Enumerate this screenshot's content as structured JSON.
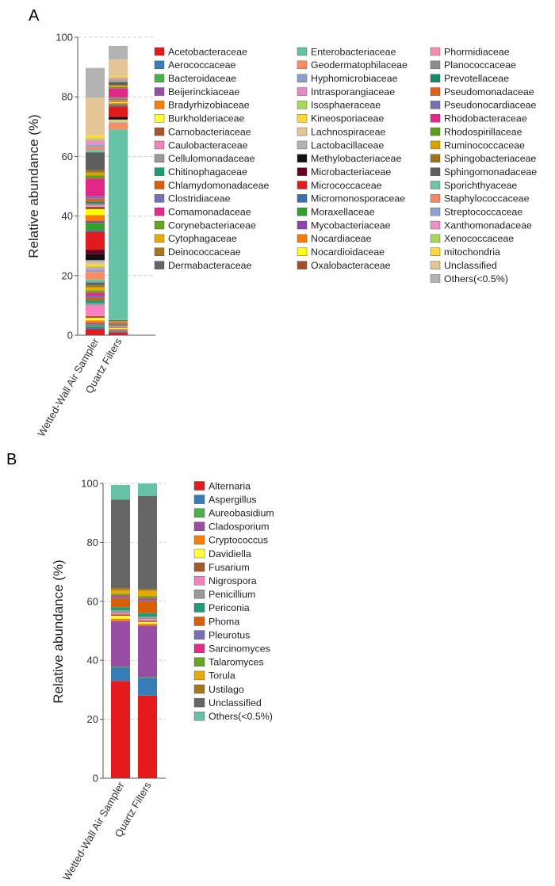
{
  "panels": [
    {
      "label": "A",
      "chart_data": {
        "type": "bar",
        "stacked": true,
        "ylabel": "Relative abundance (%)",
        "ylim": [
          0,
          100
        ],
        "yticks": [
          0,
          20,
          40,
          60,
          80,
          100
        ],
        "categories": [
          "Wetted-Wall Air Sampler",
          "Quartz Filters"
        ],
        "legend_placement": "right",
        "series": [
          {
            "name": "Acetobacteraceae",
            "color": "#e41a1c",
            "values": [
              2.0,
              1.0
            ]
          },
          {
            "name": "Aerococcaceae",
            "color": "#377eb8",
            "values": [
              0.8,
              0.3
            ]
          },
          {
            "name": "Bacteroidaceae",
            "color": "#4daf4a",
            "values": [
              0.7,
              0.2
            ]
          },
          {
            "name": "Beijerinckiaceae",
            "color": "#984ea3",
            "values": [
              0.7,
              0.3
            ]
          },
          {
            "name": "Bradyrhizobiaceae",
            "color": "#ff7f00",
            "values": [
              0.8,
              0.3
            ]
          },
          {
            "name": "Burkholderiaceae",
            "color": "#ffff33",
            "values": [
              0.8,
              0.3
            ]
          },
          {
            "name": "Carnobacteriaceae",
            "color": "#a65628",
            "values": [
              0.6,
              0.2
            ]
          },
          {
            "name": "Caulobacteraceae",
            "color": "#f781bf",
            "values": [
              3.5,
              0.3
            ]
          },
          {
            "name": "Cellulomonadaceae",
            "color": "#999999",
            "values": [
              0.8,
              0.2
            ]
          },
          {
            "name": "Chitinophagaceae",
            "color": "#1b9e77",
            "values": [
              1.0,
              0.3
            ]
          },
          {
            "name": "Chlamydomonadaceae",
            "color": "#d95f02",
            "values": [
              0.8,
              0.4
            ]
          },
          {
            "name": "Clostridiaceae",
            "color": "#7570b3",
            "values": [
              0.8,
              0.2
            ]
          },
          {
            "name": "Comamonadaceae",
            "color": "#e7298a",
            "values": [
              1.0,
              0.2
            ]
          },
          {
            "name": "Corynebacteriaceae",
            "color": "#66a61e",
            "values": [
              0.8,
              0.2
            ]
          },
          {
            "name": "Cytophagaceae",
            "color": "#e6ab02",
            "values": [
              1.0,
              0.2
            ]
          },
          {
            "name": "Deinococcaceae",
            "color": "#a6761d",
            "values": [
              0.6,
              0.2
            ]
          },
          {
            "name": "Dermabacteraceae",
            "color": "#666666",
            "values": [
              1.0,
              0.3
            ]
          },
          {
            "name": "Enterobacteriaceae",
            "color": "#66c2a5",
            "values": [
              1.0,
              64.0
            ]
          },
          {
            "name": "Geodermatophilaceae",
            "color": "#fc8d62",
            "values": [
              2.5,
              2.0
            ]
          },
          {
            "name": "Hyphomicrobiaceae",
            "color": "#8da0cb",
            "values": [
              0.8,
              0.2
            ]
          },
          {
            "name": "Intrasporangiaceae",
            "color": "#e78ac3",
            "values": [
              0.6,
              0.2
            ]
          },
          {
            "name": "Isosphaeraceae",
            "color": "#a6d854",
            "values": [
              0.6,
              0.2
            ]
          },
          {
            "name": "Kineosporiaceae",
            "color": "#ffd92f",
            "values": [
              0.6,
              0.3
            ]
          },
          {
            "name": "Lachnospiraceae",
            "color": "#e5c494",
            "values": [
              0.6,
              0.2
            ]
          },
          {
            "name": "Lactobacillaceae",
            "color": "#b3b3b3",
            "values": [
              0.8,
              0.2
            ]
          },
          {
            "name": "Methylobacteriaceae",
            "color": "#111111",
            "values": [
              2.0,
              0.6
            ]
          },
          {
            "name": "Microbacteriaceae",
            "color": "#67001f",
            "values": [
              1.5,
              0.3
            ]
          },
          {
            "name": "Micrococcaceae",
            "color": "#e31a1c",
            "values": [
              6.0,
              3.5
            ]
          },
          {
            "name": "Micromonosporaceae",
            "color": "#3a6fb0",
            "values": [
              0.5,
              0.2
            ]
          },
          {
            "name": "Moraxellaceae",
            "color": "#33a02c",
            "values": [
              2.5,
              0.3
            ]
          },
          {
            "name": "Mycobacteriaceae",
            "color": "#8e44ad",
            "values": [
              0.6,
              0.2
            ]
          },
          {
            "name": "Nocardiaceae",
            "color": "#f57c00",
            "values": [
              2.0,
              0.4
            ]
          },
          {
            "name": "Nocardioidaceae",
            "color": "#ffff00",
            "values": [
              2.0,
              0.4
            ]
          },
          {
            "name": "Oxalobacteraceae",
            "color": "#a0522d",
            "values": [
              0.8,
              0.3
            ]
          },
          {
            "name": "Phormidiaceae",
            "color": "#f48fb1",
            "values": [
              0.5,
              0.2
            ]
          },
          {
            "name": "Planococcaceae",
            "color": "#8c8c8c",
            "values": [
              0.6,
              0.3
            ]
          },
          {
            "name": "Prevotellaceae",
            "color": "#178a6b",
            "values": [
              0.6,
              0.2
            ]
          },
          {
            "name": "Pseudomonadaceae",
            "color": "#e0601a",
            "values": [
              1.0,
              0.4
            ]
          },
          {
            "name": "Pseudonocardiaceae",
            "color": "#7b6fb5",
            "values": [
              0.8,
              0.2
            ]
          },
          {
            "name": "Rhodobacteraceae",
            "color": "#e4288a",
            "values": [
              6.0,
              3.0
            ]
          },
          {
            "name": "Rhodospirillaceae",
            "color": "#5a9e1a",
            "values": [
              1.0,
              0.4
            ]
          },
          {
            "name": "Ruminococcaceae",
            "color": "#d9a300",
            "values": [
              1.0,
              0.4
            ]
          },
          {
            "name": "Sphingobacteriaceae",
            "color": "#9e7321",
            "values": [
              0.8,
              0.3
            ]
          },
          {
            "name": "Sphingomonadaceae",
            "color": "#5e5e5e",
            "values": [
              6.0,
              1.0
            ]
          },
          {
            "name": "Sporichthyaceae",
            "color": "#6bc5a5",
            "values": [
              0.8,
              0.3
            ]
          },
          {
            "name": "Staphylococcaceae",
            "color": "#f4876a",
            "values": [
              1.0,
              0.4
            ]
          },
          {
            "name": "Streptococcaceae",
            "color": "#8fa4cc",
            "values": [
              0.8,
              0.3
            ]
          },
          {
            "name": "Xanthomonadaceae",
            "color": "#e892c6",
            "values": [
              1.5,
              0.3
            ]
          },
          {
            "name": "Xenococcaceae",
            "color": "#a8d65a",
            "values": [
              0.6,
              0.3
            ]
          },
          {
            "name": "mitochondria",
            "color": "#ffd83a",
            "values": [
              1.0,
              0.4
            ]
          },
          {
            "name": "Unclassified",
            "color": "#e5c495",
            "values": [
              12.6,
              5.6
            ]
          },
          {
            "name": "Others(<0.5%)",
            "color": "#b3b3b3",
            "values": [
              10.0,
              4.5
            ]
          }
        ]
      }
    },
    {
      "label": "B",
      "chart_data": {
        "type": "bar",
        "stacked": true,
        "ylabel": "Relative abundance (%)",
        "ylim": [
          0,
          100
        ],
        "yticks": [
          0,
          20,
          40,
          60,
          80,
          100
        ],
        "categories": [
          "Wetted-Wall Air Sampler",
          "Quartz Filters"
        ],
        "legend_placement": "right",
        "series": [
          {
            "name": "Alternaria",
            "color": "#e41a1c",
            "values": [
              33.0,
              28.0
            ]
          },
          {
            "name": "Aspergillus",
            "color": "#377eb8",
            "values": [
              4.5,
              6.0
            ]
          },
          {
            "name": "Aureobasidium",
            "color": "#4daf4a",
            "values": [
              0.3,
              0.3
            ]
          },
          {
            "name": "Cladosporium",
            "color": "#984ea3",
            "values": [
              15.5,
              17.5
            ]
          },
          {
            "name": "Cryptococcus",
            "color": "#ff7f00",
            "values": [
              0.8,
              0.6
            ]
          },
          {
            "name": "Davidiella",
            "color": "#ffff33",
            "values": [
              1.0,
              0.6
            ]
          },
          {
            "name": "Fusarium",
            "color": "#a65628",
            "values": [
              0.4,
              0.4
            ]
          },
          {
            "name": "Nigrospora",
            "color": "#f781bf",
            "values": [
              0.5,
              0.6
            ]
          },
          {
            "name": "Penicillium",
            "color": "#999999",
            "values": [
              1.0,
              0.8
            ]
          },
          {
            "name": "Periconia",
            "color": "#1b9e77",
            "values": [
              1.0,
              1.2
            ]
          },
          {
            "name": "Phoma",
            "color": "#d95f02",
            "values": [
              3.0,
              4.0
            ]
          },
          {
            "name": "Pleurotus",
            "color": "#7570b3",
            "values": [
              0.5,
              0.5
            ]
          },
          {
            "name": "Sarcinomyces",
            "color": "#e7298a",
            "values": [
              0.5,
              0.5
            ]
          },
          {
            "name": "Talaromyces",
            "color": "#66a61e",
            "values": [
              0.6,
              0.8
            ]
          },
          {
            "name": "Torula",
            "color": "#e6ab02",
            "values": [
              1.2,
              1.8
            ]
          },
          {
            "name": "Ustilago",
            "color": "#a6761d",
            "values": [
              0.7,
              0.6
            ]
          },
          {
            "name": "Unclassified",
            "color": "#666666",
            "values": [
              30.0,
              31.5
            ]
          },
          {
            "name": "Others(<0.5%)",
            "color": "#66c2a5",
            "values": [
              5.0,
              4.3
            ]
          }
        ]
      }
    }
  ]
}
